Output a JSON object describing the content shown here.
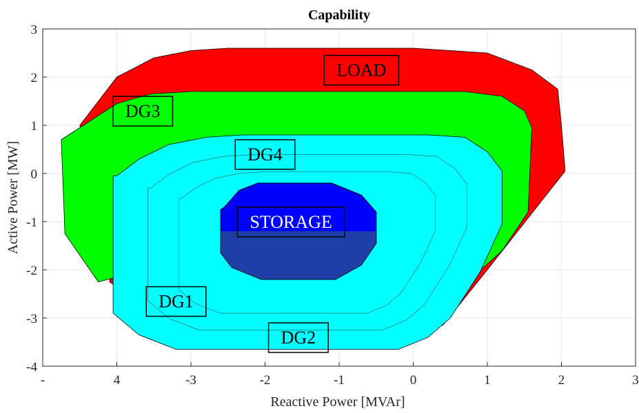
{
  "chart_data": {
    "type": "area",
    "title": "Capability",
    "xlabel": "Reactive Power [MVAr]",
    "ylabel": "Active Power [MW]",
    "xlim": [
      -5,
      3
    ],
    "ylim": [
      -4,
      3
    ],
    "grid": true,
    "x_tick_labels": [
      "-",
      "4",
      "-3",
      "-2",
      "-1",
      "0",
      "1",
      "2",
      "3"
    ],
    "y_tick_labels": [
      "3",
      "2",
      "1",
      "0",
      "-1",
      "-2",
      "-3",
      "-4"
    ],
    "series": [
      {
        "name": "LOAD",
        "color": "#ff0000",
        "points": [
          [
            -4.5,
            1.0
          ],
          [
            -4.0,
            2.0
          ],
          [
            -3.5,
            2.4
          ],
          [
            -3.0,
            2.55
          ],
          [
            -2.5,
            2.6
          ],
          [
            0.0,
            2.6
          ],
          [
            1.0,
            2.5
          ],
          [
            1.6,
            2.15
          ],
          [
            1.95,
            1.75
          ],
          [
            2.0,
            1.0
          ],
          [
            2.05,
            0.05
          ],
          [
            1.0,
            -2.0
          ],
          [
            0.4,
            -3.15
          ],
          [
            -3.25,
            -3.15
          ],
          [
            -4.1,
            -2.25
          ],
          [
            -4.0,
            -1.45
          ],
          [
            -4.5,
            1.0
          ]
        ]
      },
      {
        "name": "DG3",
        "color": "#00ff00",
        "points": [
          [
            -4.45,
            1.0
          ],
          [
            -4.0,
            1.45
          ],
          [
            -3.55,
            1.65
          ],
          [
            -3.0,
            1.7
          ],
          [
            0.7,
            1.7
          ],
          [
            1.2,
            1.6
          ],
          [
            1.5,
            1.3
          ],
          [
            1.6,
            0.95
          ],
          [
            1.55,
            -0.8
          ],
          [
            1.2,
            -1.6
          ],
          [
            0.95,
            -1.95
          ],
          [
            -3.5,
            -1.95
          ],
          [
            -4.25,
            -2.25
          ],
          [
            -4.7,
            -1.25
          ],
          [
            -4.75,
            0.7
          ],
          [
            -4.45,
            1.0
          ]
        ]
      },
      {
        "name": "DG4",
        "color": "#00ffff",
        "points": [
          [
            -4.0,
            -0.05
          ],
          [
            -3.7,
            0.3
          ],
          [
            -3.3,
            0.6
          ],
          [
            -2.8,
            0.75
          ],
          [
            -2.3,
            0.8
          ],
          [
            0.2,
            0.8
          ],
          [
            0.7,
            0.75
          ],
          [
            1.0,
            0.45
          ],
          [
            1.2,
            0.05
          ],
          [
            1.2,
            -1.05
          ],
          [
            0.9,
            -2.05
          ],
          [
            0.5,
            -3.0
          ],
          [
            0.2,
            -3.4
          ],
          [
            -0.2,
            -3.65
          ],
          [
            -3.2,
            -3.65
          ],
          [
            -3.7,
            -3.35
          ],
          [
            -4.05,
            -2.9
          ],
          [
            -4.05,
            -0.05
          ],
          [
            -4.0,
            -0.05
          ]
        ]
      },
      {
        "name": "STORAGE",
        "color": "#0000ff",
        "points": [
          [
            -2.55,
            -0.7
          ],
          [
            -2.35,
            -0.35
          ],
          [
            -2.1,
            -0.2
          ],
          [
            -1.1,
            -0.2
          ],
          [
            -0.7,
            -0.45
          ],
          [
            -0.5,
            -0.8
          ],
          [
            -0.5,
            -1.45
          ],
          [
            -0.7,
            -1.9
          ],
          [
            -1.05,
            -2.2
          ],
          [
            -2.05,
            -2.2
          ],
          [
            -2.45,
            -1.95
          ],
          [
            -2.6,
            -1.65
          ],
          [
            -2.6,
            -0.75
          ],
          [
            -2.55,
            -0.7
          ]
        ]
      }
    ],
    "labels": [
      {
        "text": "LOAD",
        "x": -0.7,
        "y": 2.15
      },
      {
        "text": "DG3",
        "x": -3.65,
        "y": 1.3
      },
      {
        "text": "DG4",
        "x": -2.0,
        "y": 0.4
      },
      {
        "text": "STORAGE",
        "x": -1.65,
        "y": -1.0
      },
      {
        "text": "DG1",
        "x": -3.2,
        "y": -2.65
      },
      {
        "text": "DG2",
        "x": -1.55,
        "y": -3.4
      }
    ]
  }
}
